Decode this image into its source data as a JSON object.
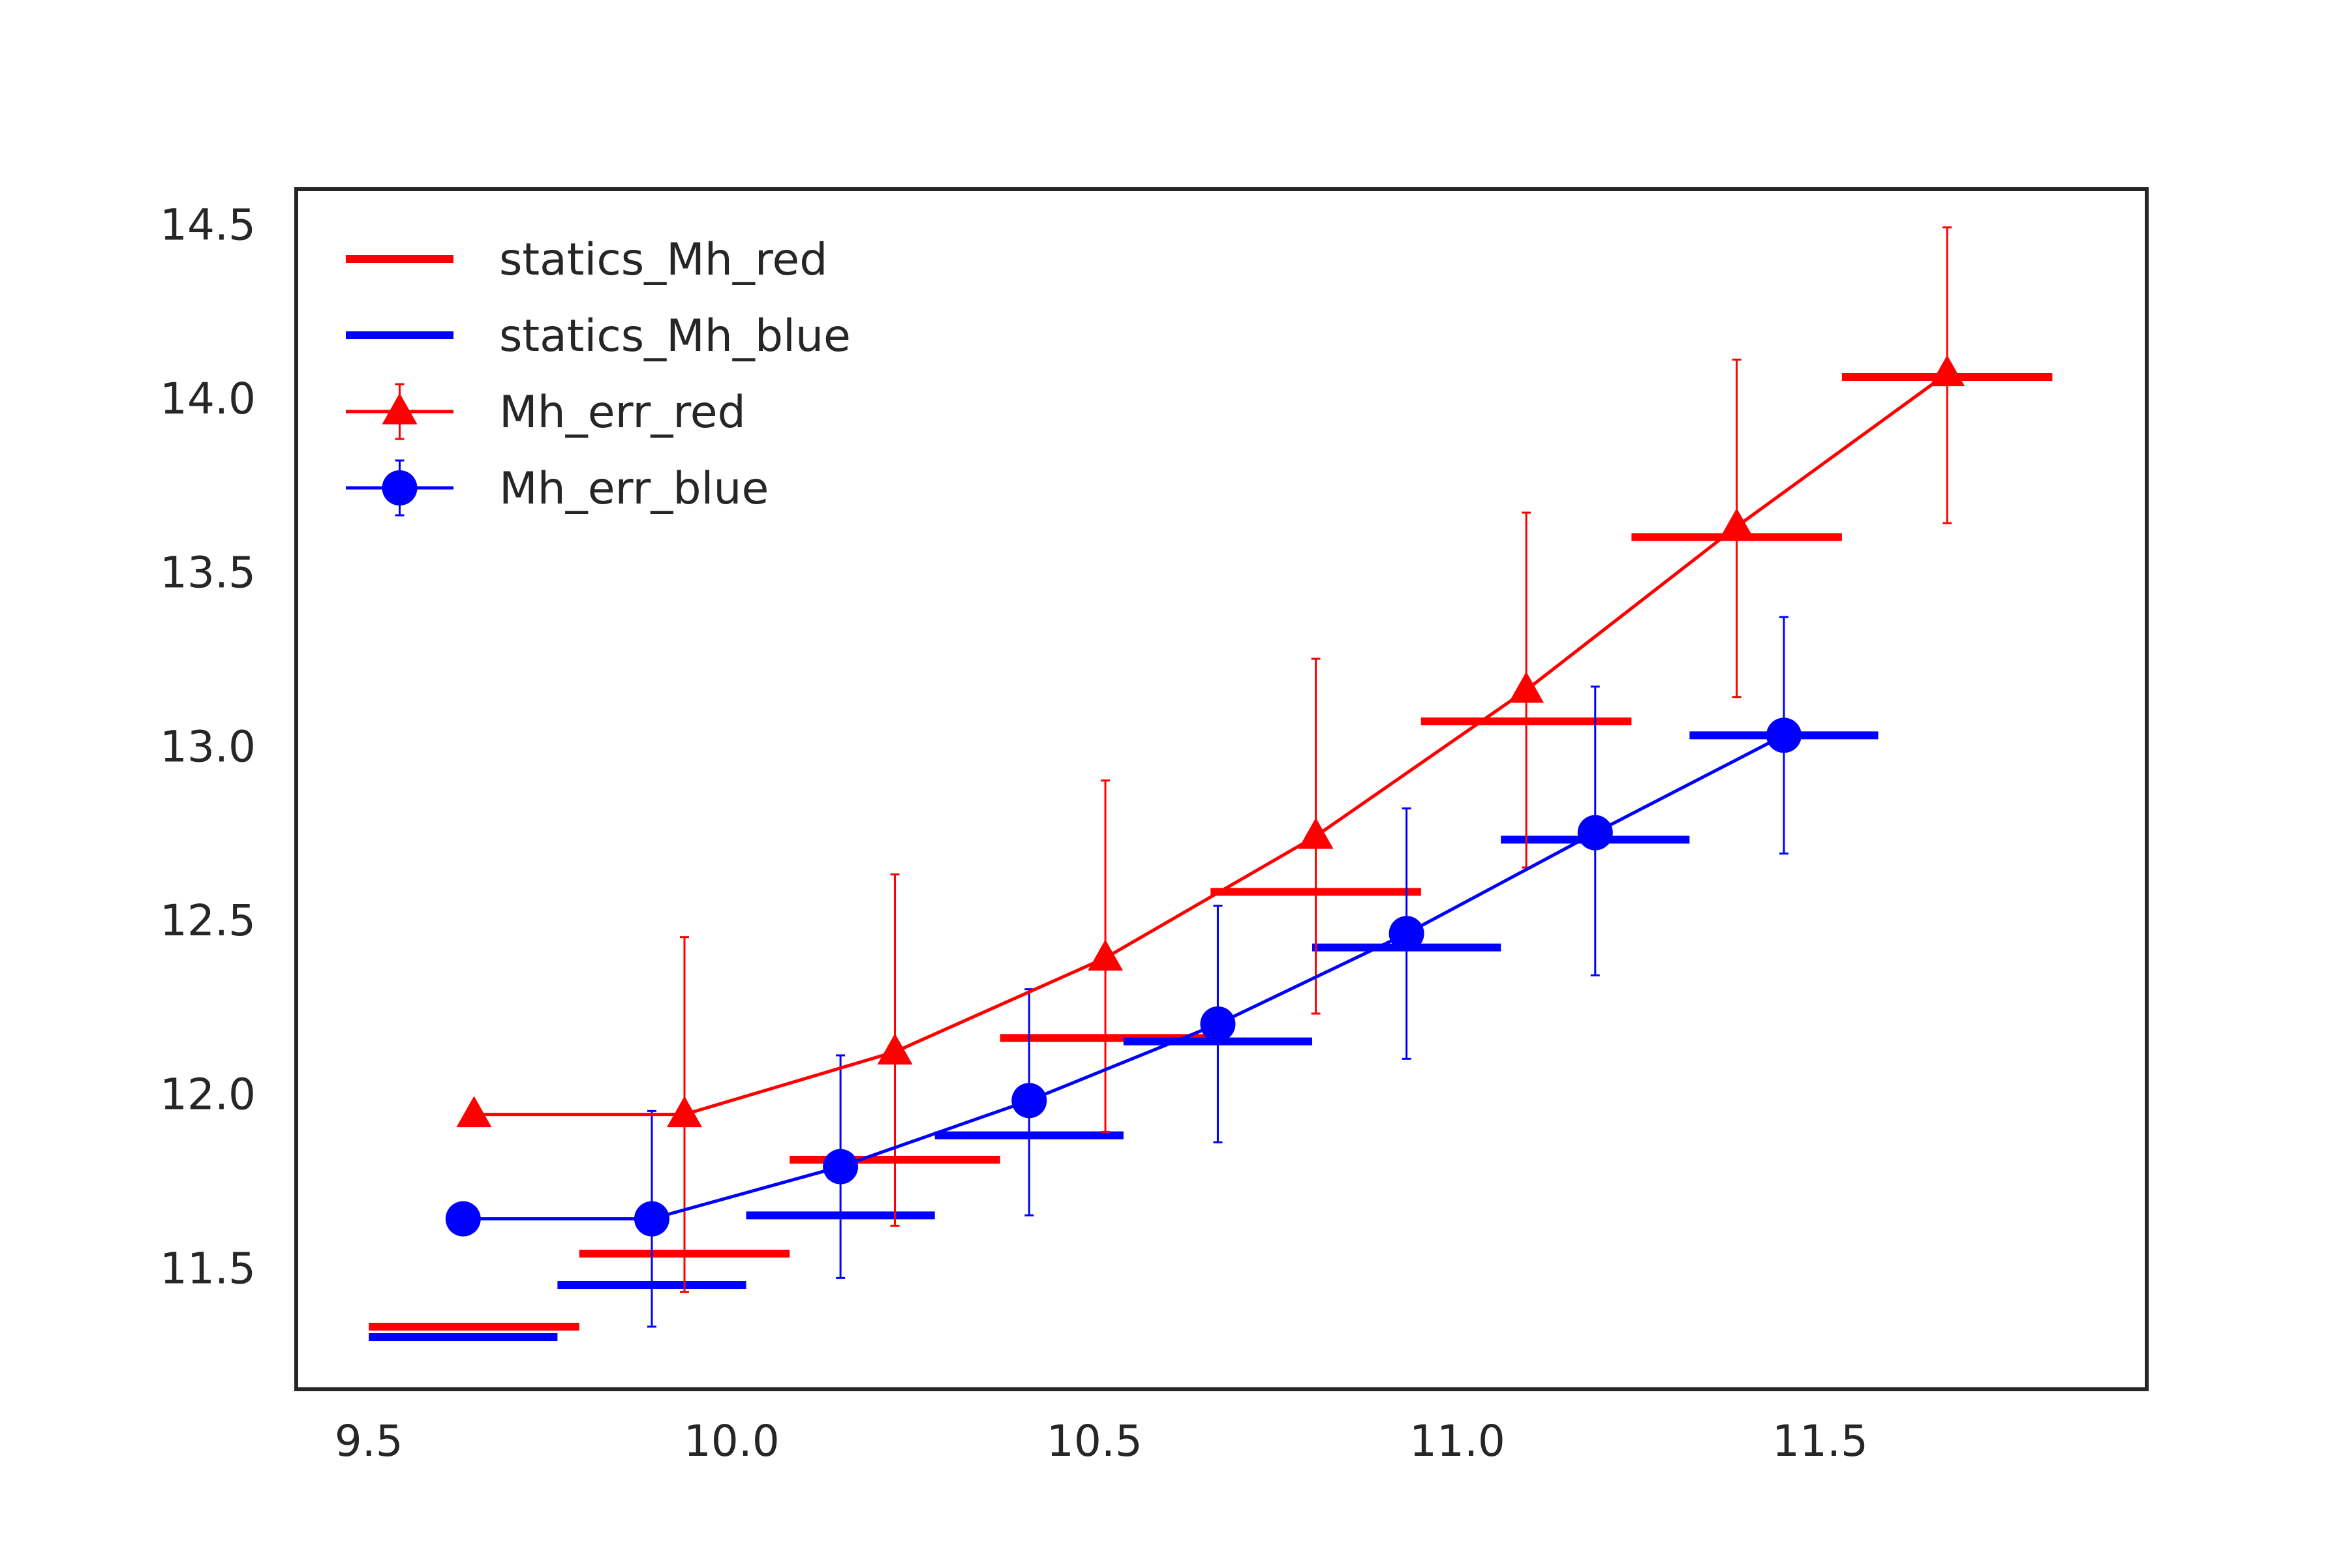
{
  "chart_data": {
    "type": "line",
    "title": "",
    "xlabel": "",
    "ylabel": "",
    "xlim": [
      9.4,
      11.95
    ],
    "ylim": [
      11.15,
      14.6
    ],
    "x_ticks": [
      9.5,
      10.0,
      10.5,
      11.0,
      11.5
    ],
    "x_tick_labels": [
      "9.5",
      "10.0",
      "10.5",
      "11.0",
      "11.5"
    ],
    "y_ticks": [
      11.5,
      12.0,
      12.5,
      13.0,
      13.5,
      14.0,
      14.5
    ],
    "y_tick_labels": [
      "11.5",
      "12.0",
      "12.5",
      "13.0",
      "13.5",
      "14.0",
      "14.5"
    ],
    "grid": false,
    "legend_position": "top-left",
    "legend": [
      {
        "label": "statics_Mh_red",
        "kind": "hline",
        "color": "#ff0000"
      },
      {
        "label": "statics_Mh_blue",
        "kind": "hline",
        "color": "#0000ff"
      },
      {
        "label": "Mh_err_red",
        "kind": "errorbar-triangle",
        "color": "#ff0000"
      },
      {
        "label": "Mh_err_blue",
        "kind": "errorbar-circle",
        "color": "#0000ff"
      }
    ],
    "statics_series": [
      {
        "name": "statics_Mh_red",
        "color": "#ff0000",
        "segments": [
          {
            "x0": 9.5,
            "x1": 9.79,
            "y": 11.33
          },
          {
            "x0": 9.79,
            "x1": 10.08,
            "y": 11.54
          },
          {
            "x0": 10.08,
            "x1": 10.37,
            "y": 11.81
          },
          {
            "x0": 10.37,
            "x1": 10.66,
            "y": 12.16
          },
          {
            "x0": 10.66,
            "x1": 10.95,
            "y": 12.58
          },
          {
            "x0": 10.95,
            "x1": 11.24,
            "y": 13.07
          },
          {
            "x0": 11.24,
            "x1": 11.53,
            "y": 13.6
          },
          {
            "x0": 11.53,
            "x1": 11.82,
            "y": 14.06
          }
        ]
      },
      {
        "name": "statics_Mh_blue",
        "color": "#0000ff",
        "segments": [
          {
            "x0": 9.5,
            "x1": 9.76,
            "y": 11.3
          },
          {
            "x0": 9.76,
            "x1": 10.02,
            "y": 11.45
          },
          {
            "x0": 10.02,
            "x1": 10.28,
            "y": 11.65
          },
          {
            "x0": 10.28,
            "x1": 10.54,
            "y": 11.88
          },
          {
            "x0": 10.54,
            "x1": 10.8,
            "y": 12.15
          },
          {
            "x0": 10.8,
            "x1": 11.06,
            "y": 12.42
          },
          {
            "x0": 11.06,
            "x1": 11.32,
            "y": 12.73
          },
          {
            "x0": 11.32,
            "x1": 11.58,
            "y": 13.03
          }
        ]
      }
    ],
    "error_series": [
      {
        "name": "Mh_err_red",
        "color": "#ff0000",
        "marker": "triangle",
        "points": [
          {
            "x": 9.645,
            "y": 11.94,
            "ylo": null,
            "yhi": null
          },
          {
            "x": 9.935,
            "y": 11.94,
            "ylo": 11.43,
            "yhi": 12.45
          },
          {
            "x": 10.225,
            "y": 12.12,
            "ylo": 11.62,
            "yhi": 12.63
          },
          {
            "x": 10.515,
            "y": 12.39,
            "ylo": 11.89,
            "yhi": 12.9
          },
          {
            "x": 10.805,
            "y": 12.74,
            "ylo": 12.23,
            "yhi": 13.25
          },
          {
            "x": 11.095,
            "y": 13.16,
            "ylo": 12.65,
            "yhi": 13.67
          },
          {
            "x": 11.385,
            "y": 13.63,
            "ylo": 13.14,
            "yhi": 14.11
          },
          {
            "x": 11.675,
            "y": 14.07,
            "ylo": 13.64,
            "yhi": 14.49
          }
        ]
      },
      {
        "name": "Mh_err_blue",
        "color": "#0000ff",
        "marker": "circle",
        "points": [
          {
            "x": 9.63,
            "y": 11.64,
            "ylo": null,
            "yhi": null
          },
          {
            "x": 9.89,
            "y": 11.64,
            "ylo": 11.33,
            "yhi": 11.95
          },
          {
            "x": 10.15,
            "y": 11.79,
            "ylo": 11.47,
            "yhi": 12.11
          },
          {
            "x": 10.41,
            "y": 11.98,
            "ylo": 11.65,
            "yhi": 12.3
          },
          {
            "x": 10.67,
            "y": 12.2,
            "ylo": 11.86,
            "yhi": 12.54
          },
          {
            "x": 10.93,
            "y": 12.46,
            "ylo": 12.1,
            "yhi": 12.82
          },
          {
            "x": 11.19,
            "y": 12.75,
            "ylo": 12.34,
            "yhi": 13.17
          },
          {
            "x": 11.45,
            "y": 13.03,
            "ylo": 12.69,
            "yhi": 13.37
          }
        ]
      }
    ]
  }
}
